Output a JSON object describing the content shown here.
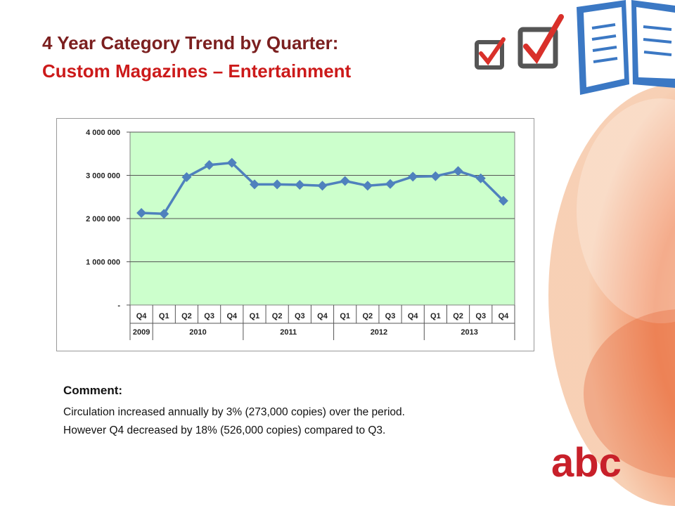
{
  "slide": {
    "title_line1": "4 Year Category Trend by Quarter:",
    "title_line2": "Custom Magazines – Entertainment",
    "comment_heading": "Comment:",
    "comment_line1": "Circulation increased annually by 3% (273,000 copies) over the period.",
    "comment_line2": "However Q4 decreased by 18% (526,000 copies) compared to Q3."
  },
  "logo": {
    "text": "abc",
    "color": "#c8202a"
  },
  "colors": {
    "title_dark": "#7b1f1f",
    "title_red": "#cc1a1a",
    "plot_bg": "#ccffcc",
    "series": "#4f81bd"
  },
  "chart_data": {
    "type": "line",
    "categories": [
      "Q4",
      "Q1",
      "Q2",
      "Q3",
      "Q4",
      "Q1",
      "Q2",
      "Q3",
      "Q4",
      "Q1",
      "Q2",
      "Q3",
      "Q4",
      "Q1",
      "Q2",
      "Q3",
      "Q4"
    ],
    "year_groups": [
      {
        "label": "2009",
        "count": 1
      },
      {
        "label": "2010",
        "count": 4
      },
      {
        "label": "2011",
        "count": 4
      },
      {
        "label": "2012",
        "count": 4
      },
      {
        "label": "2013",
        "count": 4
      }
    ],
    "series": [
      {
        "values": [
          2130000,
          2110000,
          2960000,
          3240000,
          3290000,
          2790000,
          2790000,
          2780000,
          2760000,
          2870000,
          2760000,
          2800000,
          2970000,
          2980000,
          3100000,
          2930000,
          2410000
        ]
      }
    ],
    "y_ticks": [
      {
        "value": 0,
        "label": "-"
      },
      {
        "value": 1000000,
        "label": "1 000 000"
      },
      {
        "value": 2000000,
        "label": "2 000 000"
      },
      {
        "value": 3000000,
        "label": "3 000 000"
      },
      {
        "value": 4000000,
        "label": "4 000 000"
      }
    ],
    "ylim": [
      0,
      4000000
    ],
    "grid": true,
    "legend": "none",
    "marker": "diamond"
  }
}
